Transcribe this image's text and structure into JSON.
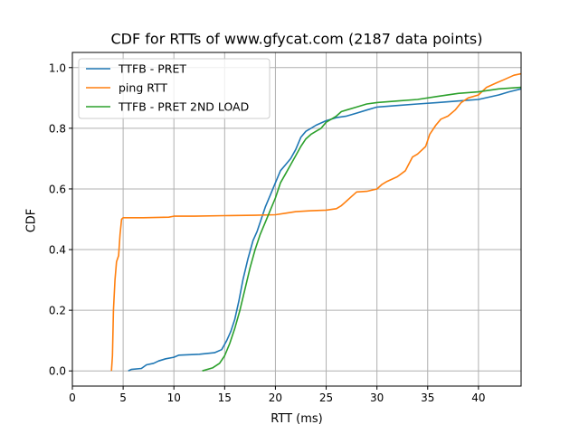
{
  "chart_data": {
    "type": "line",
    "title": "CDF for RTTs of www.gfycat.com (2187 data points)",
    "xlabel": "RTT (ms)",
    "ylabel": "CDF",
    "xlim": [
      0,
      44.2
    ],
    "ylim": [
      -0.05,
      1.05
    ],
    "xticks": [
      0,
      5,
      10,
      15,
      20,
      25,
      30,
      35,
      40
    ],
    "yticks": [
      0.0,
      0.2,
      0.4,
      0.6,
      0.8,
      1.0
    ],
    "xtick_labels": [
      "0",
      "5",
      "10",
      "15",
      "20",
      "25",
      "30",
      "35",
      "40"
    ],
    "ytick_labels": [
      "0.0",
      "0.2",
      "0.4",
      "0.6",
      "0.8",
      "1.0"
    ],
    "grid": true,
    "legend_position": "top-left",
    "series": [
      {
        "name": "TTFB - PRET",
        "color": "#1f77b4",
        "points": [
          [
            5.5,
            0.0
          ],
          [
            5.8,
            0.005
          ],
          [
            6.8,
            0.008
          ],
          [
            7.3,
            0.02
          ],
          [
            8.0,
            0.025
          ],
          [
            8.5,
            0.033
          ],
          [
            9.2,
            0.04
          ],
          [
            10.0,
            0.045
          ],
          [
            10.5,
            0.052
          ],
          [
            12.5,
            0.055
          ],
          [
            14.0,
            0.06
          ],
          [
            14.7,
            0.07
          ],
          [
            15.2,
            0.1
          ],
          [
            15.6,
            0.13
          ],
          [
            16.0,
            0.17
          ],
          [
            16.4,
            0.23
          ],
          [
            16.8,
            0.3
          ],
          [
            17.3,
            0.37
          ],
          [
            17.8,
            0.43
          ],
          [
            18.2,
            0.46
          ],
          [
            18.6,
            0.5
          ],
          [
            19.0,
            0.54
          ],
          [
            19.5,
            0.58
          ],
          [
            20.0,
            0.62
          ],
          [
            20.5,
            0.66
          ],
          [
            21.0,
            0.68
          ],
          [
            21.5,
            0.7
          ],
          [
            22.0,
            0.73
          ],
          [
            22.5,
            0.77
          ],
          [
            23.0,
            0.79
          ],
          [
            23.5,
            0.8
          ],
          [
            24.0,
            0.81
          ],
          [
            25.0,
            0.825
          ],
          [
            26.0,
            0.835
          ],
          [
            27.0,
            0.84
          ],
          [
            28.0,
            0.85
          ],
          [
            29.0,
            0.86
          ],
          [
            30.0,
            0.87
          ],
          [
            32.0,
            0.875
          ],
          [
            34.0,
            0.88
          ],
          [
            36.0,
            0.885
          ],
          [
            38.0,
            0.89
          ],
          [
            40.0,
            0.895
          ],
          [
            42.0,
            0.91
          ],
          [
            43.0,
            0.92
          ],
          [
            44.2,
            0.93
          ]
        ]
      },
      {
        "name": "ping RTT",
        "color": "#ff7f0e",
        "points": [
          [
            3.85,
            0.0
          ],
          [
            3.95,
            0.05
          ],
          [
            4.05,
            0.2
          ],
          [
            4.2,
            0.3
          ],
          [
            4.35,
            0.36
          ],
          [
            4.55,
            0.38
          ],
          [
            4.7,
            0.45
          ],
          [
            4.85,
            0.5
          ],
          [
            5.0,
            0.505
          ],
          [
            7.0,
            0.505
          ],
          [
            9.5,
            0.507
          ],
          [
            10.0,
            0.51
          ],
          [
            12.0,
            0.51
          ],
          [
            15.0,
            0.512
          ],
          [
            18.0,
            0.513
          ],
          [
            20.0,
            0.515
          ],
          [
            21.0,
            0.52
          ],
          [
            22.0,
            0.525
          ],
          [
            23.5,
            0.528
          ],
          [
            25.0,
            0.53
          ],
          [
            26.0,
            0.535
          ],
          [
            26.5,
            0.545
          ],
          [
            27.0,
            0.56
          ],
          [
            27.5,
            0.575
          ],
          [
            28.0,
            0.59
          ],
          [
            29.0,
            0.592
          ],
          [
            30.0,
            0.6
          ],
          [
            30.5,
            0.615
          ],
          [
            31.0,
            0.625
          ],
          [
            32.0,
            0.64
          ],
          [
            32.8,
            0.66
          ],
          [
            33.5,
            0.705
          ],
          [
            34.0,
            0.715
          ],
          [
            34.8,
            0.74
          ],
          [
            35.2,
            0.78
          ],
          [
            35.8,
            0.81
          ],
          [
            36.3,
            0.83
          ],
          [
            37.0,
            0.84
          ],
          [
            37.7,
            0.86
          ],
          [
            38.3,
            0.885
          ],
          [
            39.0,
            0.9
          ],
          [
            40.0,
            0.91
          ],
          [
            40.8,
            0.935
          ],
          [
            41.8,
            0.95
          ],
          [
            42.5,
            0.96
          ],
          [
            43.5,
            0.975
          ],
          [
            44.2,
            0.98
          ]
        ]
      },
      {
        "name": "TTFB - PRET 2ND LOAD",
        "color": "#2ca02c",
        "points": [
          [
            12.8,
            0.0
          ],
          [
            13.8,
            0.01
          ],
          [
            14.5,
            0.025
          ],
          [
            15.0,
            0.05
          ],
          [
            15.5,
            0.09
          ],
          [
            16.0,
            0.14
          ],
          [
            16.5,
            0.2
          ],
          [
            17.0,
            0.27
          ],
          [
            17.5,
            0.34
          ],
          [
            18.0,
            0.4
          ],
          [
            18.5,
            0.45
          ],
          [
            19.0,
            0.49
          ],
          [
            19.5,
            0.53
          ],
          [
            20.0,
            0.57
          ],
          [
            20.5,
            0.62
          ],
          [
            21.0,
            0.65
          ],
          [
            21.5,
            0.68
          ],
          [
            22.0,
            0.71
          ],
          [
            22.5,
            0.74
          ],
          [
            23.0,
            0.765
          ],
          [
            23.5,
            0.78
          ],
          [
            24.0,
            0.79
          ],
          [
            24.5,
            0.8
          ],
          [
            25.0,
            0.82
          ],
          [
            25.5,
            0.83
          ],
          [
            26.0,
            0.84
          ],
          [
            26.5,
            0.855
          ],
          [
            27.0,
            0.86
          ],
          [
            28.0,
            0.87
          ],
          [
            29.0,
            0.88
          ],
          [
            30.0,
            0.885
          ],
          [
            32.0,
            0.89
          ],
          [
            34.0,
            0.895
          ],
          [
            36.0,
            0.905
          ],
          [
            38.0,
            0.915
          ],
          [
            40.0,
            0.92
          ],
          [
            42.0,
            0.93
          ],
          [
            44.2,
            0.935
          ]
        ]
      }
    ]
  }
}
